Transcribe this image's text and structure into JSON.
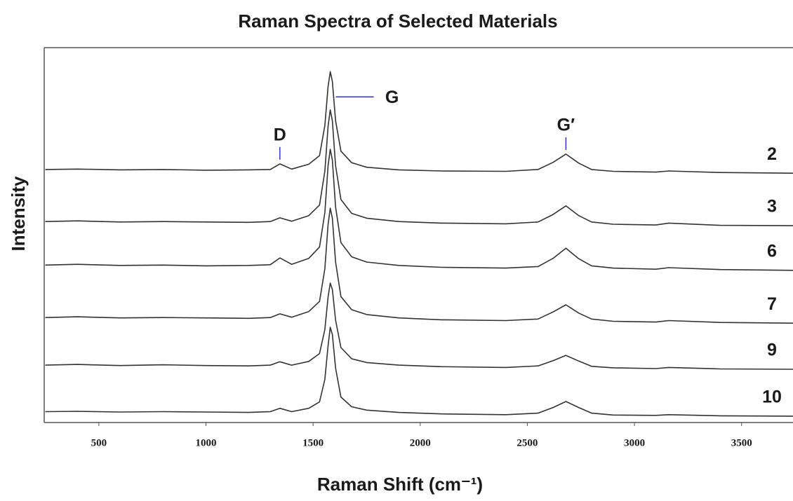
{
  "chart_data": {
    "type": "line",
    "title": "Raman Spectra of Selected Materials",
    "xlabel": "Raman Shift (cm⁻¹)",
    "ylabel": "Intensity",
    "x": [
      250,
      400,
      600,
      800,
      1000,
      1200,
      1300,
      1345,
      1400,
      1480,
      1530,
      1555,
      1570,
      1580,
      1590,
      1605,
      1630,
      1680,
      1750,
      1900,
      2100,
      2400,
      2550,
      2620,
      2680,
      2740,
      2800,
      2900,
      3100,
      3160,
      3400,
      3740
    ],
    "series": [
      {
        "name": "2",
        "color": "#333333",
        "values": [
          67.5,
          67.6,
          67.4,
          67.5,
          67.3,
          67.4,
          67.5,
          69.0,
          67.6,
          68.9,
          71.2,
          79.2,
          89.6,
          93.6,
          91.0,
          80.5,
          72.4,
          69.3,
          68.1,
          67.4,
          67.1,
          67.0,
          67.5,
          69.4,
          71.6,
          69.2,
          67.5,
          67.0,
          66.8,
          67.1,
          66.7,
          66.5
        ]
      },
      {
        "name": "3",
        "color": "#333333",
        "values": [
          53.6,
          53.8,
          53.5,
          53.6,
          53.5,
          53.4,
          53.6,
          54.6,
          53.7,
          55.2,
          58.0,
          67.0,
          79.0,
          83.4,
          80.5,
          68.5,
          59.5,
          55.8,
          54.5,
          53.6,
          53.2,
          53.0,
          53.5,
          55.5,
          57.8,
          55.2,
          53.5,
          52.9,
          52.7,
          53.2,
          52.6,
          52.5
        ]
      },
      {
        "name": "6",
        "color": "#333333",
        "values": [
          42.0,
          42.2,
          41.9,
          42.0,
          41.8,
          41.9,
          42.1,
          43.9,
          42.2,
          43.8,
          46.8,
          56.0,
          68.5,
          72.9,
          70.0,
          57.5,
          48.0,
          44.2,
          42.8,
          41.9,
          41.4,
          41.2,
          41.6,
          43.8,
          46.5,
          43.7,
          41.8,
          41.2,
          40.9,
          41.3,
          40.8,
          40.6
        ]
      },
      {
        "name": "7",
        "color": "#333333",
        "values": [
          28.0,
          28.2,
          27.9,
          28.0,
          27.9,
          27.8,
          28.0,
          29.0,
          28.1,
          29.6,
          32.3,
          41.0,
          52.8,
          57.2,
          54.5,
          42.8,
          33.6,
          30.1,
          28.8,
          27.9,
          27.4,
          27.2,
          27.6,
          29.5,
          31.4,
          29.2,
          27.6,
          27.0,
          26.8,
          27.2,
          26.7,
          26.5
        ]
      },
      {
        "name": "9",
        "color": "#333333",
        "values": [
          15.3,
          15.5,
          15.2,
          15.4,
          15.2,
          15.1,
          15.3,
          16.2,
          15.3,
          16.3,
          18.4,
          24.8,
          33.5,
          37.2,
          35.5,
          27.3,
          20.0,
          17.0,
          16.0,
          15.3,
          14.9,
          14.7,
          15.1,
          16.5,
          17.9,
          16.4,
          15.0,
          14.6,
          14.4,
          14.7,
          14.3,
          14.2
        ]
      },
      {
        "name": "10",
        "color": "#333333",
        "values": [
          2.9,
          3.0,
          2.8,
          2.9,
          2.8,
          2.7,
          2.9,
          3.8,
          2.9,
          3.8,
          5.5,
          11.5,
          20.5,
          25.4,
          23.5,
          14.5,
          6.8,
          4.2,
          3.3,
          2.7,
          2.3,
          2.1,
          2.5,
          4.0,
          5.6,
          4.0,
          2.5,
          2.0,
          1.9,
          2.1,
          1.8,
          1.7
        ]
      }
    ],
    "annotations": [
      {
        "label": "D",
        "x": 1345
      },
      {
        "label": "G",
        "x": 1580
      },
      {
        "label": "G′",
        "x": 2680
      }
    ],
    "annotation_color": "#3333cc",
    "xlim": [
      245,
      3740
    ],
    "xticks": [
      500,
      1000,
      1500,
      2000,
      2500,
      3000,
      3500
    ],
    "ylim": [
      0,
      100
    ],
    "grid": false
  }
}
